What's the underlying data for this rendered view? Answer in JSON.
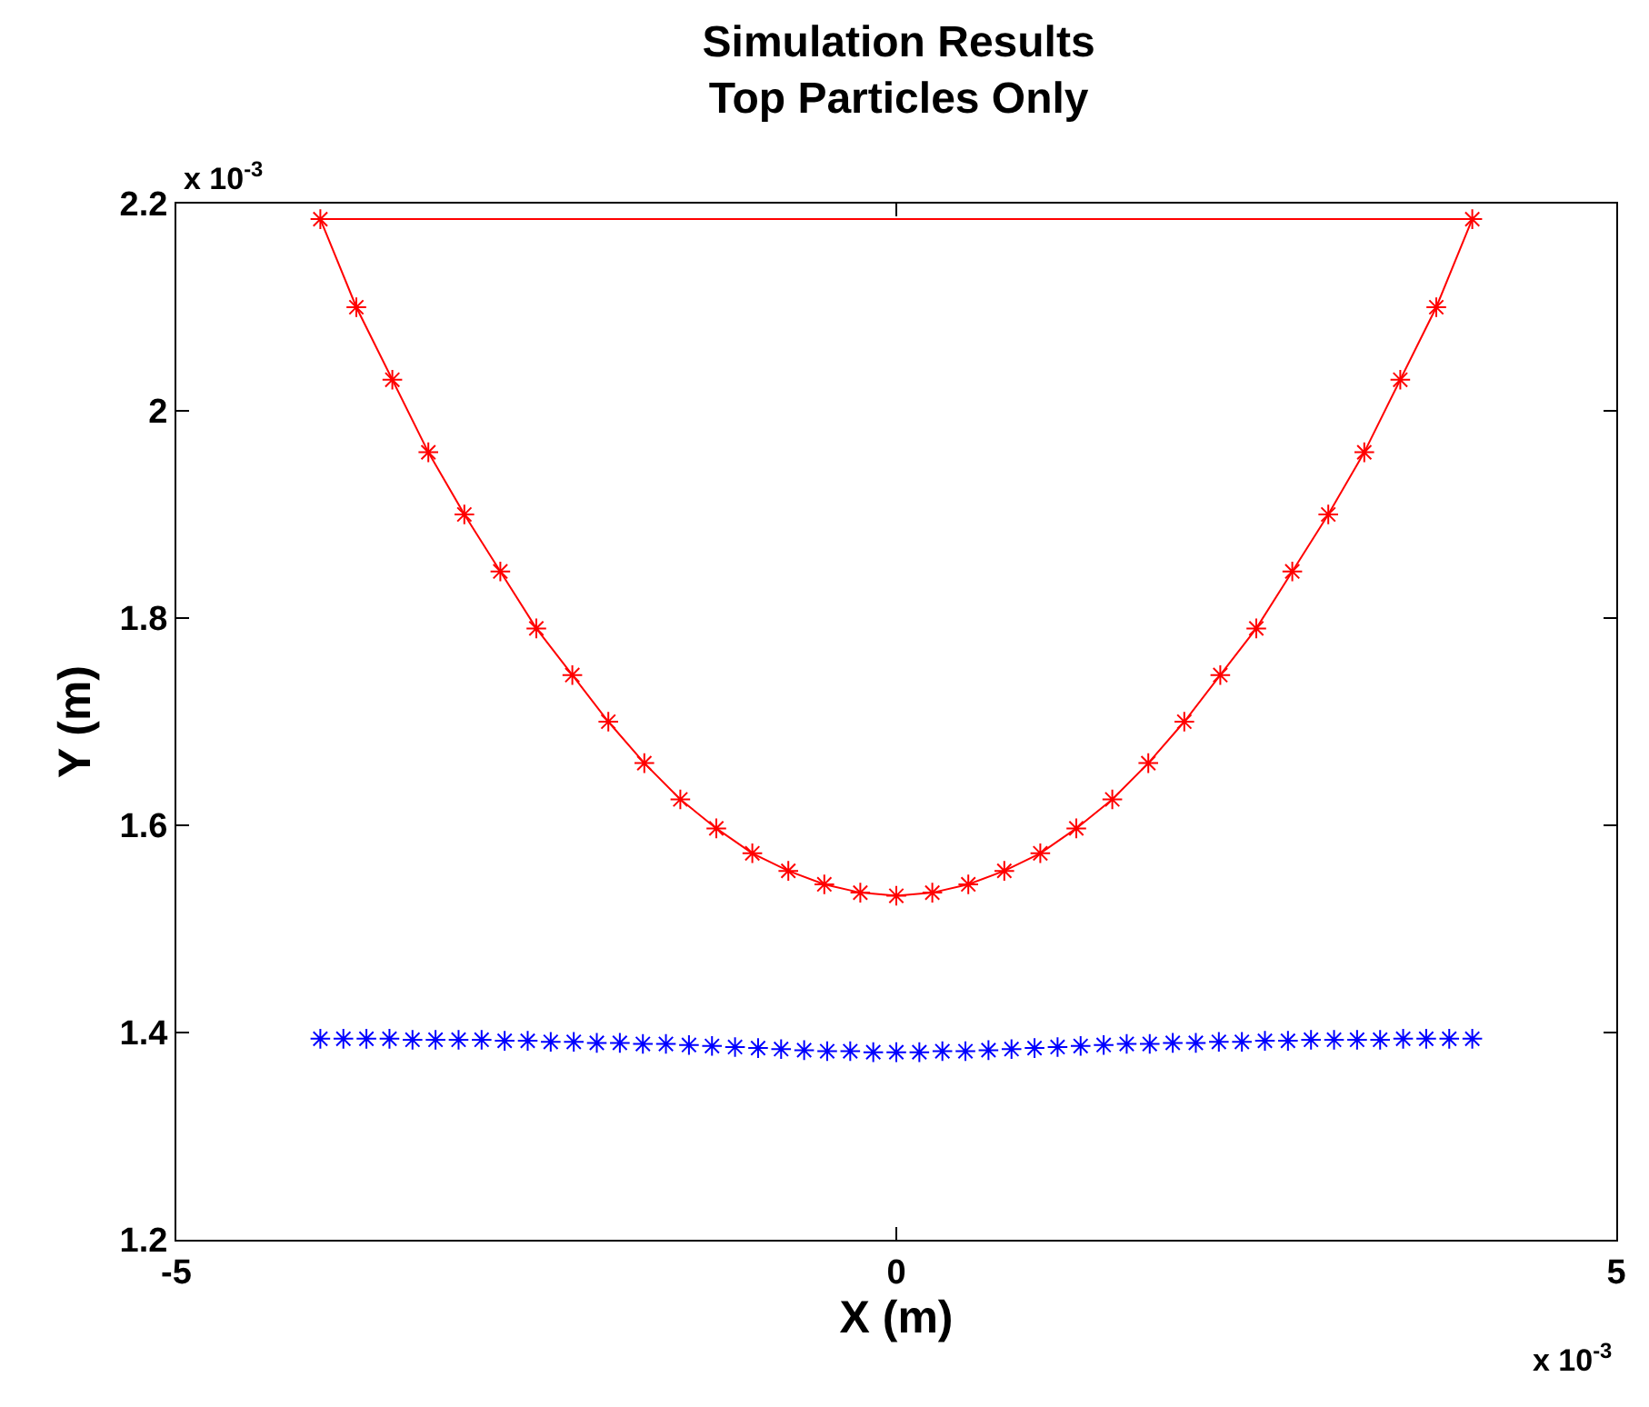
{
  "chart_data": {
    "type": "line",
    "title": "Simulation Results\nTop Particles Only",
    "xlabel": "X (m)",
    "ylabel": "Y (m)",
    "xlim": [
      -5,
      5
    ],
    "xticks": [
      -5,
      0,
      5
    ],
    "ylim": [
      1.2,
      2.2
    ],
    "yticks": [
      1.2,
      1.4,
      1.6,
      1.8,
      2,
      2.2
    ],
    "annotations": [
      "x 10$^{-3}$",
      "x 10$^{-3}$"
    ],
    "series": [
      {
        "color": "#ff0000",
        "marker": "cross",
        "line_style": "solid",
        "x": [
          -4,
          -3.75,
          -3.5,
          -3.25,
          -3,
          -2.75,
          -2.5,
          -2.25,
          -2,
          -1.75,
          -1.5,
          -1.25,
          -1,
          -0.75,
          -0.5,
          -0.25,
          0,
          0.25,
          0.5,
          0.75,
          1,
          1.25,
          1.5,
          1.75,
          2,
          2.25,
          2.5,
          2.75,
          3,
          3.25,
          3.5,
          3.75,
          4
        ],
        "values": [
          2.185,
          2.1,
          2.03,
          1.96,
          1.9,
          1.845,
          1.79,
          1.745,
          1.7,
          1.66,
          1.625,
          1.597,
          1.573,
          1.556,
          1.543,
          1.535,
          1.532,
          1.535,
          1.543,
          1.556,
          1.573,
          1.597,
          1.625,
          1.66,
          1.7,
          1.745,
          1.79,
          1.845,
          1.9,
          1.96,
          2.03,
          2.1,
          2.185
        ]
      },
      {
        "color": "#ff0000",
        "marker": "none",
        "line_style": "solid",
        "x": [
          -4,
          4
        ],
        "values": [
          2.185,
          2.185
        ]
      },
      {
        "type": "scatter",
        "color": "#0000ff",
        "marker": "cross",
        "x": [
          -4,
          -3.84,
          -3.68,
          -3.52,
          -3.36,
          -3.2,
          -3.04,
          -2.88,
          -2.72,
          -2.56,
          -2.4,
          -2.24,
          -2.08,
          -1.92,
          -1.76,
          -1.6,
          -1.44,
          -1.28,
          -1.12,
          -0.96,
          -0.8,
          -0.64,
          -0.48,
          -0.32,
          -0.16,
          0,
          0.16,
          0.32,
          0.48,
          0.64,
          0.8,
          0.96,
          1.12,
          1.28,
          1.44,
          1.6,
          1.76,
          1.92,
          2.08,
          2.24,
          2.4,
          2.56,
          2.72,
          2.88,
          3.04,
          3.2,
          3.36,
          3.52,
          3.68,
          3.84,
          4
        ],
        "values": [
          1.394,
          1.394,
          1.394,
          1.394,
          1.393,
          1.393,
          1.393,
          1.393,
          1.392,
          1.392,
          1.391,
          1.391,
          1.39,
          1.39,
          1.389,
          1.389,
          1.388,
          1.387,
          1.386,
          1.385,
          1.384,
          1.383,
          1.382,
          1.382,
          1.381,
          1.381,
          1.381,
          1.382,
          1.382,
          1.383,
          1.384,
          1.385,
          1.386,
          1.387,
          1.388,
          1.389,
          1.389,
          1.39,
          1.39,
          1.391,
          1.391,
          1.392,
          1.392,
          1.393,
          1.393,
          1.393,
          1.393,
          1.394,
          1.394,
          1.394,
          1.394
        ]
      }
    ]
  }
}
